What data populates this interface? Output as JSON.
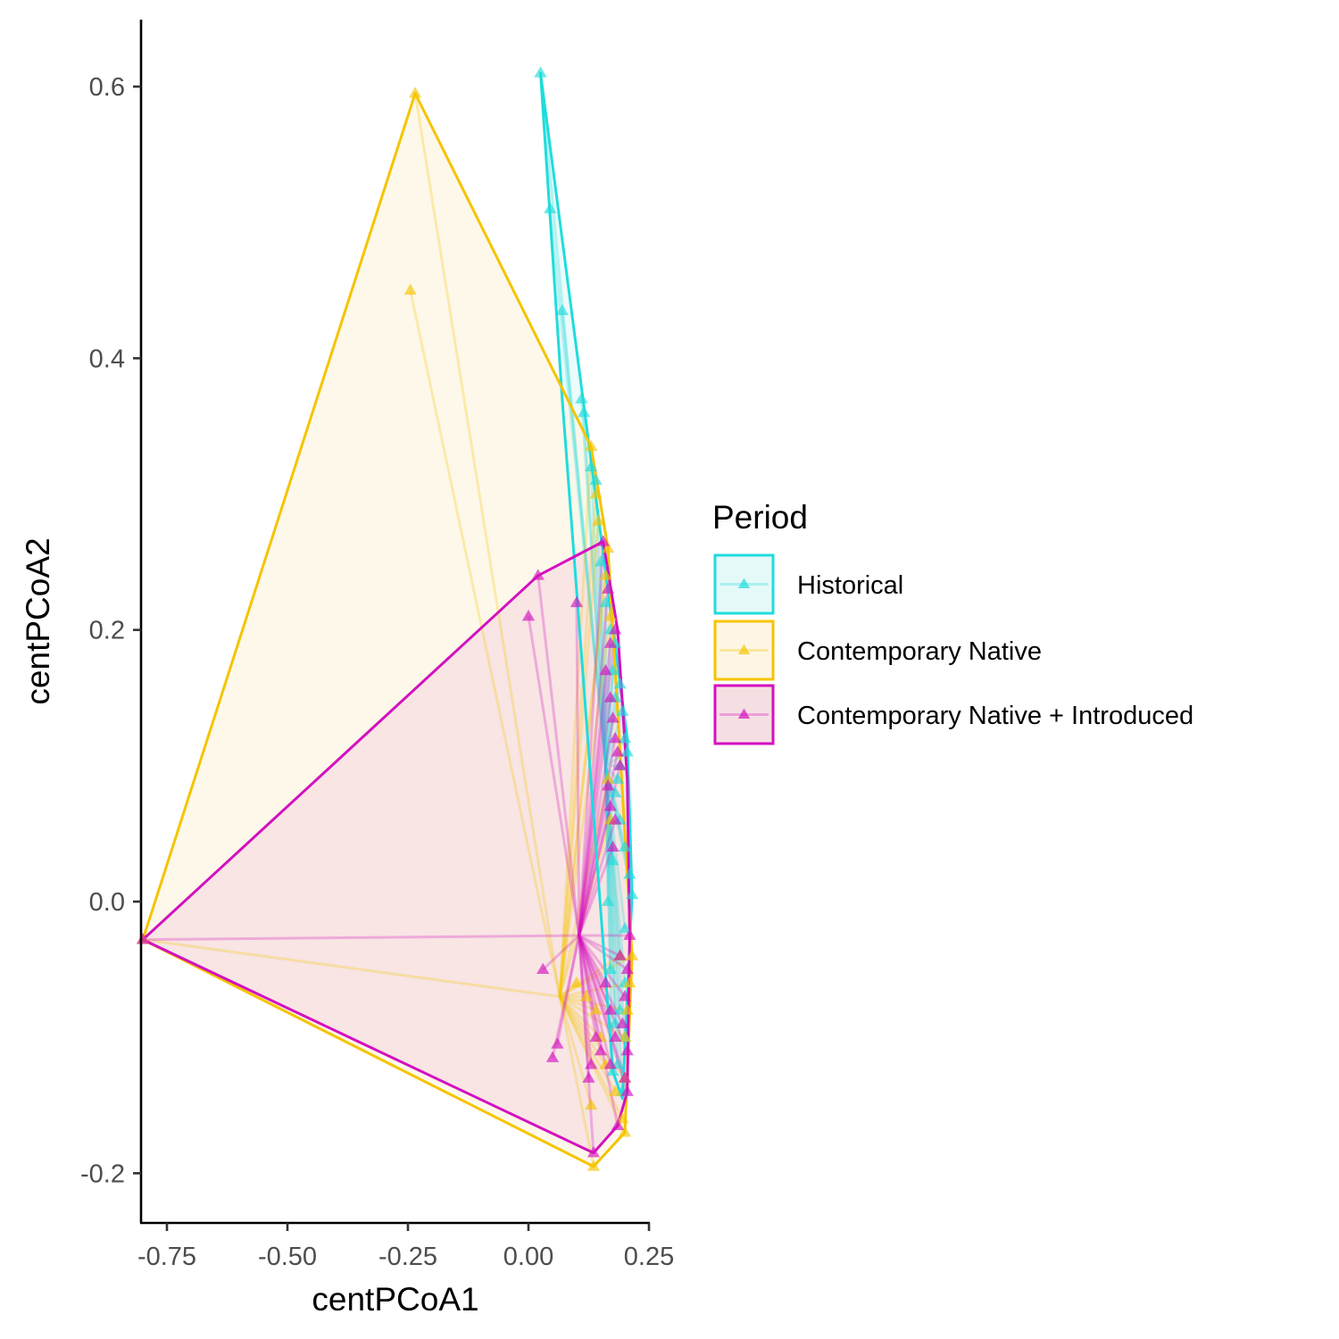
{
  "chart_data": {
    "type": "scatter",
    "xlabel": "centPCoA1",
    "ylabel": "centPCoA2",
    "xlim": [
      -0.84,
      0.27
    ],
    "ylim": [
      -0.235,
      0.645
    ],
    "xticks": [
      -0.75,
      -0.5,
      -0.25,
      0.0,
      0.25
    ],
    "xtick_labels": [
      "-0.75",
      "-0.50",
      "-0.25",
      "0.00",
      "0.25"
    ],
    "yticks": [
      -0.2,
      0.0,
      0.2,
      0.4,
      0.6
    ],
    "ytick_labels": [
      "-0.2",
      "0.0",
      "0.2",
      "0.4",
      "0.6"
    ],
    "grid": false,
    "legend": {
      "title": "Period",
      "placement": "right",
      "entries": [
        "Historical",
        "Contemporary Native",
        "Contemporary Native + Introduced"
      ]
    },
    "series": [
      {
        "name": "Historical",
        "color": "#20DCDC",
        "fill": "#E6F9F9",
        "centroid": [
          0.16,
          0.1
        ],
        "hull": [
          [
            0.025,
            0.61
          ],
          [
            0.205,
            0.12
          ],
          [
            0.215,
            0.005
          ],
          [
            0.195,
            -0.145
          ],
          [
            0.175,
            -0.125
          ],
          [
            0.07,
            0.37
          ]
        ],
        "points": [
          [
            0.025,
            0.61
          ],
          [
            0.045,
            0.51
          ],
          [
            0.07,
            0.435
          ],
          [
            0.11,
            0.37
          ],
          [
            0.115,
            0.36
          ],
          [
            0.13,
            0.32
          ],
          [
            0.14,
            0.31
          ],
          [
            0.15,
            0.25
          ],
          [
            0.16,
            0.22
          ],
          [
            0.17,
            0.2
          ],
          [
            0.18,
            0.19
          ],
          [
            0.175,
            0.17
          ],
          [
            0.19,
            0.16
          ],
          [
            0.18,
            0.15
          ],
          [
            0.195,
            0.14
          ],
          [
            0.2,
            0.12
          ],
          [
            0.205,
            0.11
          ],
          [
            0.19,
            0.1
          ],
          [
            0.185,
            0.09
          ],
          [
            0.18,
            0.08
          ],
          [
            0.19,
            0.06
          ],
          [
            0.2,
            0.04
          ],
          [
            0.21,
            0.02
          ],
          [
            0.215,
            0.005
          ],
          [
            0.2,
            -0.02
          ],
          [
            0.19,
            -0.04
          ],
          [
            0.2,
            -0.06
          ],
          [
            0.19,
            -0.08
          ],
          [
            0.2,
            -0.1
          ],
          [
            0.185,
            -0.12
          ],
          [
            0.195,
            -0.14
          ],
          [
            0.175,
            -0.125
          ],
          [
            0.18,
            -0.09
          ],
          [
            0.17,
            -0.05
          ],
          [
            0.165,
            0.0
          ],
          [
            0.175,
            0.03
          ]
        ]
      },
      {
        "name": "Contemporary Native",
        "color": "#F5C400",
        "fill": "#FDF6E4",
        "centroid": [
          0.065,
          -0.07
        ],
        "hull": [
          [
            -0.235,
            0.595
          ],
          [
            0.13,
            0.335
          ],
          [
            0.165,
            0.26
          ],
          [
            0.215,
            -0.04
          ],
          [
            0.2,
            -0.17
          ],
          [
            0.135,
            -0.195
          ],
          [
            -0.8,
            -0.028
          ]
        ],
        "points": [
          [
            -0.235,
            0.595
          ],
          [
            -0.245,
            0.45
          ],
          [
            0.13,
            0.335
          ],
          [
            0.14,
            0.3
          ],
          [
            0.145,
            0.28
          ],
          [
            0.165,
            0.26
          ],
          [
            0.16,
            0.24
          ],
          [
            0.17,
            0.21
          ],
          [
            0.165,
            0.09
          ],
          [
            0.17,
            0.06
          ],
          [
            0.215,
            -0.04
          ],
          [
            0.21,
            -0.06
          ],
          [
            0.205,
            -0.08
          ],
          [
            0.2,
            -0.1
          ],
          [
            0.2,
            -0.13
          ],
          [
            0.2,
            -0.17
          ],
          [
            0.195,
            -0.16
          ],
          [
            0.18,
            -0.14
          ],
          [
            0.16,
            -0.12
          ],
          [
            0.15,
            -0.1
          ],
          [
            0.14,
            -0.08
          ],
          [
            0.12,
            -0.07
          ],
          [
            0.1,
            -0.06
          ],
          [
            0.135,
            -0.195
          ],
          [
            0.13,
            -0.15
          ],
          [
            0.19,
            -0.04
          ],
          [
            -0.8,
            -0.028
          ]
        ]
      },
      {
        "name": "Contemporary Native + Introduced",
        "color": "#D311BF",
        "fill": "#F6DFE2",
        "centroid": [
          0.105,
          -0.025
        ],
        "hull": [
          [
            0.155,
            0.265
          ],
          [
            0.185,
            0.2
          ],
          [
            0.205,
            0.09
          ],
          [
            0.21,
            -0.025
          ],
          [
            0.205,
            -0.14
          ],
          [
            0.185,
            -0.165
          ],
          [
            0.135,
            -0.185
          ],
          [
            -0.8,
            -0.028
          ],
          [
            0.02,
            0.24
          ]
        ],
        "points": [
          [
            0.155,
            0.265
          ],
          [
            0.02,
            0.24
          ],
          [
            0.0,
            0.21
          ],
          [
            0.1,
            0.22
          ],
          [
            0.165,
            0.23
          ],
          [
            0.18,
            0.2
          ],
          [
            0.17,
            0.19
          ],
          [
            0.16,
            0.17
          ],
          [
            0.17,
            0.15
          ],
          [
            0.175,
            0.135
          ],
          [
            0.18,
            0.12
          ],
          [
            0.185,
            0.11
          ],
          [
            0.19,
            0.1
          ],
          [
            0.165,
            0.085
          ],
          [
            0.17,
            0.07
          ],
          [
            0.18,
            0.06
          ],
          [
            0.175,
            0.04
          ],
          [
            0.21,
            -0.025
          ],
          [
            0.205,
            -0.05
          ],
          [
            0.19,
            -0.04
          ],
          [
            0.2,
            -0.07
          ],
          [
            0.195,
            -0.09
          ],
          [
            0.205,
            -0.11
          ],
          [
            0.2,
            -0.13
          ],
          [
            0.205,
            -0.14
          ],
          [
            0.185,
            -0.165
          ],
          [
            0.135,
            -0.185
          ],
          [
            0.14,
            -0.1
          ],
          [
            0.15,
            -0.11
          ],
          [
            0.13,
            -0.12
          ],
          [
            0.125,
            -0.13
          ],
          [
            0.06,
            -0.105
          ],
          [
            0.05,
            -0.115
          ],
          [
            0.03,
            -0.05
          ],
          [
            0.16,
            -0.06
          ],
          [
            0.17,
            -0.08
          ],
          [
            0.18,
            -0.1
          ],
          [
            0.17,
            -0.12
          ],
          [
            -0.8,
            -0.028
          ]
        ]
      }
    ]
  }
}
